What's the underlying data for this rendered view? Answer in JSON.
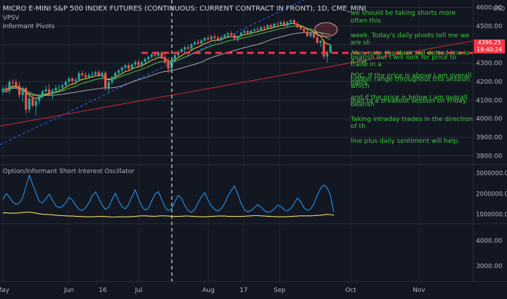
{
  "chart": {
    "title": "MICRO E-MINI S&P 500 INDEX FUTURES (CONTINUOUS: CURRENT CONTRACT IN FRONT), 1D, CME_MINI",
    "indicators": [
      "VPSV",
      "Informant Pivots"
    ],
    "oscillator_title": "Option/Informant Short Interest Oscillator",
    "price_label": "4396.25",
    "countdown_label": "18:40:24",
    "currency_label": "USD",
    "annotation_lines_top": [
      "we should be taking shorts more often this",
      "week. Today's daily pivots tell me we are sli",
      "bearish but I will look for price to trade in a",
      "tighter range throughout this session which",
      "lead to a breakout session on Friday."
    ],
    "annotation_lines_bottom": [
      "Also, note the thick red dotted line is a ma",
      "POC. If the price is above I am overall bullis",
      "and if the price is below I am overall bearish",
      "Taking intraday trades in the direction of th",
      "line plus daily sentiment will help."
    ],
    "colors": {
      "background": "#131722",
      "bull": "#26a69a",
      "bear": "#ef5350",
      "ema_fast": "#f2c12e",
      "ema_mid": "#4caf50",
      "sma_slow": "#9e9e9e",
      "trendline": "#b22833",
      "channel": "#2962ff",
      "poc": "#f23645",
      "osc_blue": "#2196f3",
      "osc_yellow": "#f5e16b",
      "annotation": "#3cc83c"
    }
  },
  "chart_data": [
    {
      "type": "candlestick",
      "x_ticks": [
        "May",
        "Jun",
        "16",
        "Jul",
        "Aug",
        "17",
        "Sep",
        "Oct",
        "Nov"
      ],
      "y_ticks": [
        4600,
        4500,
        4400,
        4300,
        4200,
        4100,
        4000,
        3900,
        3800
      ],
      "ylim": [
        3760,
        4640
      ],
      "last_price": 4396.25,
      "poc_level": 4355,
      "ohlc": [
        [
          4147,
          4176,
          4129,
          4160
        ],
        [
          4160,
          4182,
          4141,
          4150
        ],
        [
          4150,
          4210,
          4133,
          4198
        ],
        [
          4198,
          4212,
          4176,
          4196
        ],
        [
          4196,
          4214,
          4168,
          4178
        ],
        [
          4178,
          4197,
          4110,
          4128
        ],
        [
          4128,
          4173,
          4090,
          4165
        ],
        [
          4165,
          4172,
          4028,
          4050
        ],
        [
          4050,
          4134,
          4032,
          4110
        ],
        [
          4110,
          4126,
          4062,
          4070
        ],
        [
          4070,
          4108,
          4020,
          4096
        ],
        [
          4096,
          4130,
          4077,
          4120
        ],
        [
          4120,
          4155,
          4108,
          4148
        ],
        [
          4148,
          4176,
          4140,
          4158
        ],
        [
          4158,
          4187,
          4120,
          4138
        ],
        [
          4138,
          4163,
          4105,
          4153
        ],
        [
          4153,
          4182,
          4139,
          4166
        ],
        [
          4166,
          4185,
          4144,
          4168
        ],
        [
          4168,
          4189,
          4150,
          4180
        ],
        [
          4180,
          4206,
          4168,
          4200
        ],
        [
          4200,
          4226,
          4187,
          4217
        ],
        [
          4217,
          4225,
          4187,
          4203
        ],
        [
          4203,
          4221,
          4185,
          4210
        ],
        [
          4210,
          4255,
          4200,
          4244
        ],
        [
          4244,
          4258,
          4225,
          4235
        ],
        [
          4235,
          4251,
          4212,
          4224
        ],
        [
          4224,
          4247,
          4215,
          4236
        ],
        [
          4236,
          4254,
          4225,
          4240
        ],
        [
          4240,
          4259,
          4233,
          4250
        ],
        [
          4250,
          4262,
          4226,
          4234
        ],
        [
          4234,
          4255,
          4214,
          4247
        ],
        [
          4247,
          4256,
          4150,
          4166
        ],
        [
          4166,
          4206,
          4140,
          4197
        ],
        [
          4197,
          4230,
          4184,
          4224
        ],
        [
          4224,
          4255,
          4210,
          4247
        ],
        [
          4247,
          4268,
          4236,
          4260
        ],
        [
          4260,
          4283,
          4250,
          4275
        ],
        [
          4275,
          4295,
          4264,
          4288
        ],
        [
          4288,
          4300,
          4262,
          4270
        ],
        [
          4270,
          4297,
          4262,
          4292
        ],
        [
          4292,
          4315,
          4283,
          4305
        ],
        [
          4305,
          4318,
          4281,
          4288
        ],
        [
          4288,
          4313,
          4276,
          4306
        ],
        [
          4306,
          4330,
          4298,
          4322
        ],
        [
          4322,
          4341,
          4310,
          4334
        ],
        [
          4334,
          4352,
          4322,
          4346
        ],
        [
          4346,
          4359,
          4330,
          4340
        ],
        [
          4340,
          4364,
          4328,
          4356
        ],
        [
          4356,
          4365,
          4320,
          4332
        ],
        [
          4332,
          4350,
          4295,
          4305
        ],
        [
          4305,
          4330,
          4245,
          4270
        ],
        [
          4270,
          4318,
          4258,
          4312
        ],
        [
          4312,
          4349,
          4304,
          4342
        ],
        [
          4342,
          4368,
          4330,
          4360
        ],
        [
          4360,
          4380,
          4352,
          4374
        ],
        [
          4374,
          4393,
          4362,
          4385
        ],
        [
          4385,
          4400,
          4370,
          4378
        ],
        [
          4378,
          4408,
          4372,
          4402
        ],
        [
          4402,
          4420,
          4394,
          4412
        ],
        [
          4412,
          4428,
          4398,
          4405
        ],
        [
          4405,
          4430,
          4398,
          4422
        ],
        [
          4422,
          4441,
          4414,
          4434
        ],
        [
          4434,
          4448,
          4420,
          4428
        ],
        [
          4428,
          4451,
          4422,
          4443
        ],
        [
          4443,
          4456,
          4430,
          4436
        ],
        [
          4436,
          4448,
          4418,
          4424
        ],
        [
          4424,
          4447,
          4414,
          4440
        ],
        [
          4440,
          4458,
          4434,
          4452
        ],
        [
          4452,
          4468,
          4442,
          4460
        ],
        [
          4460,
          4472,
          4446,
          4452
        ],
        [
          4452,
          4462,
          4424,
          4432
        ],
        [
          4432,
          4450,
          4414,
          4446
        ],
        [
          4446,
          4470,
          4440,
          4464
        ],
        [
          4464,
          4480,
          4452,
          4472
        ],
        [
          4472,
          4482,
          4456,
          4462
        ],
        [
          4462,
          4479,
          4452,
          4474
        ],
        [
          4474,
          4488,
          4466,
          4482
        ],
        [
          4482,
          4494,
          4470,
          4478
        ],
        [
          4478,
          4498,
          4474,
          4492
        ],
        [
          4492,
          4502,
          4480,
          4488
        ],
        [
          4488,
          4510,
          4484,
          4504
        ],
        [
          4504,
          4512,
          4490,
          4495
        ],
        [
          4495,
          4516,
          4490,
          4512
        ],
        [
          4512,
          4524,
          4502,
          4510
        ],
        [
          4510,
          4527,
          4505,
          4520
        ],
        [
          4520,
          4531,
          4498,
          4502
        ],
        [
          4502,
          4526,
          4496,
          4522
        ],
        [
          4522,
          4536,
          4515,
          4530
        ],
        [
          4530,
          4539,
          4508,
          4512
        ],
        [
          4512,
          4522,
          4488,
          4494
        ],
        [
          4494,
          4505,
          4476,
          4484
        ],
        [
          4484,
          4497,
          4462,
          4470
        ],
        [
          4470,
          4478,
          4440,
          4446
        ],
        [
          4446,
          4469,
          4436,
          4462
        ],
        [
          4462,
          4470,
          4430,
          4438
        ],
        [
          4438,
          4448,
          4404,
          4410
        ],
        [
          4410,
          4426,
          4386,
          4420
        ],
        [
          4420,
          4428,
          4322,
          4335
        ],
        [
          4335,
          4367,
          4303,
          4357
        ],
        [
          4357,
          4402,
          4352,
          4396
        ]
      ]
    },
    {
      "type": "line",
      "y_ticks": [
        3000000,
        2000000,
        1000000
      ],
      "ylim": [
        650000,
        3200000
      ],
      "series": [
        {
          "values": [
            1720000,
            2000000,
            1850000,
            1600000,
            1480000,
            1550000,
            1800000,
            2350000,
            2900000,
            2450000,
            2050000,
            1620000,
            1550000,
            1750000,
            1980000,
            1680000,
            1420000,
            1320000,
            1380000,
            1560000,
            1820000,
            1700000,
            1450000,
            1250000,
            1180000,
            1320000,
            1560000,
            1900000,
            2080000,
            1780000,
            1450000,
            1240000,
            1350000,
            1720000,
            2020000,
            1650000,
            1380000,
            1260000,
            1480000,
            1850000,
            2180000,
            1750000,
            1380000,
            1200000,
            1300000,
            1650000,
            1980000,
            2100000,
            1720000,
            1350000,
            1180000,
            1280000,
            1620000,
            1920000,
            1780000,
            1420000,
            1180000,
            1100000,
            1240000,
            1560000,
            1850000,
            2050000,
            1700000,
            1420000,
            1250000,
            1150000,
            1280000,
            1520000,
            1880000,
            2150000,
            2380000,
            1980000,
            1520000,
            1220000,
            1120000,
            1180000,
            1320000,
            1480000,
            1350000,
            1180000,
            1100000,
            1140000,
            1260000,
            1450000,
            1380000,
            1220000,
            1160000,
            1280000,
            1520000,
            1790000,
            1620000,
            1320000,
            1180000,
            1260000,
            1520000,
            1920000,
            2250000,
            2420000,
            2300000,
            1900000,
            1100000
          ]
        },
        {
          "values": [
            1080000,
            1070000,
            1060000,
            1060000,
            1060000,
            1070000,
            1090000,
            1110000,
            1110000,
            1090000,
            1060000,
            1030000,
            1010000,
            1000000,
            990000,
            980000,
            960000,
            950000,
            940000,
            930000,
            920000,
            920000,
            910000,
            900000,
            890000,
            880000,
            880000,
            880000,
            890000,
            900000,
            900000,
            890000,
            880000,
            870000,
            870000,
            880000,
            880000,
            880000,
            880000,
            890000,
            900000,
            920000,
            930000,
            930000,
            920000,
            910000,
            910000,
            920000,
            930000,
            930000,
            920000,
            910000,
            900000,
            900000,
            910000,
            920000,
            920000,
            910000,
            900000,
            890000,
            880000,
            880000,
            890000,
            900000,
            910000,
            920000,
            920000,
            920000,
            910000,
            900000,
            900000,
            900000,
            900000,
            910000,
            920000,
            930000,
            940000,
            940000,
            930000,
            920000,
            910000,
            900000,
            890000,
            880000,
            880000,
            880000,
            890000,
            900000,
            910000,
            920000,
            930000,
            930000,
            930000,
            930000,
            940000,
            950000,
            960000,
            980000,
            1000000,
            990000,
            960000
          ]
        }
      ]
    }
  ]
}
